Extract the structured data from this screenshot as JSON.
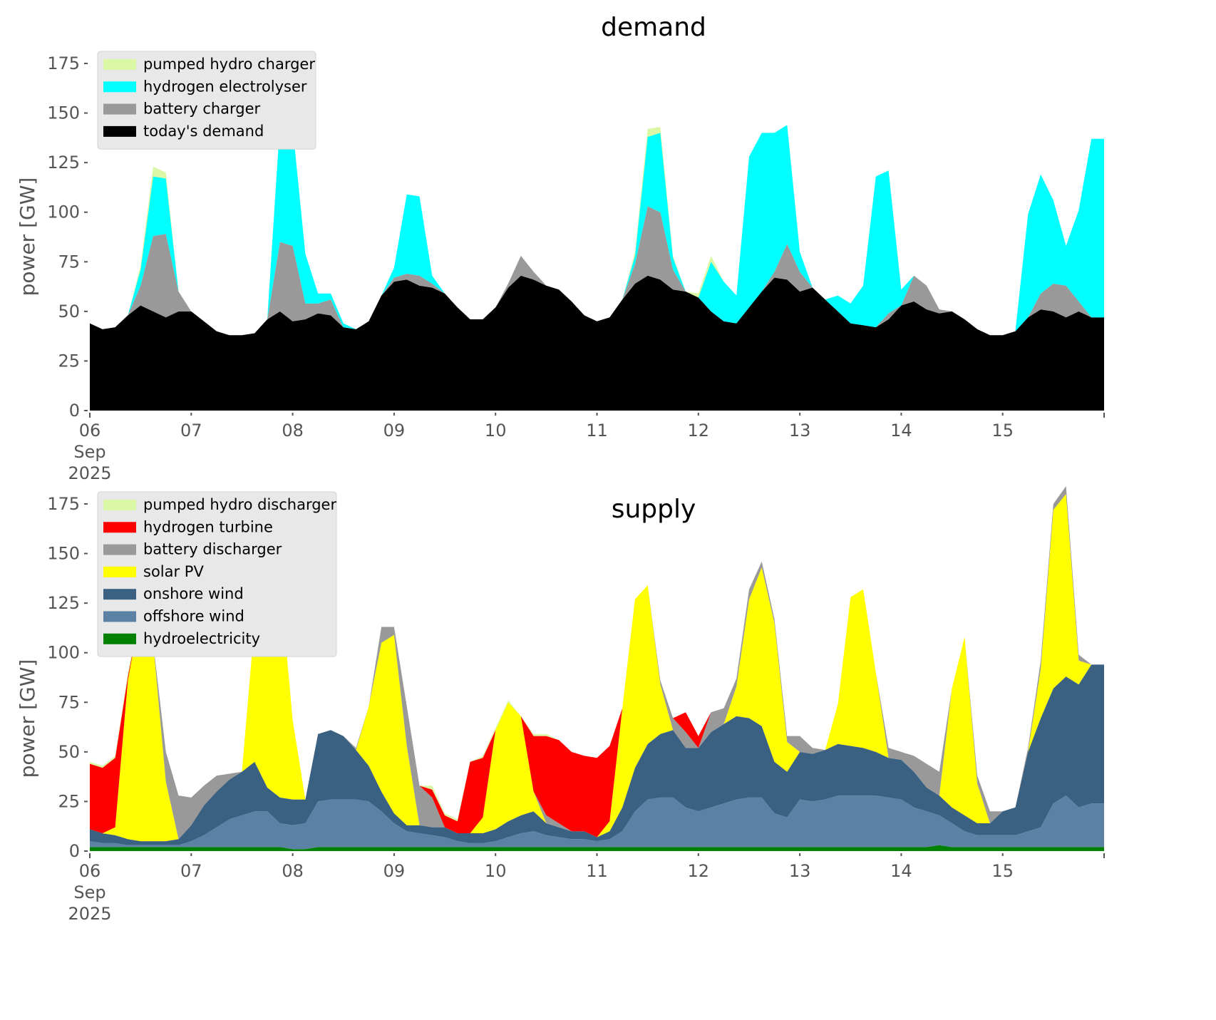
{
  "chart_data": [
    {
      "type": "area",
      "stacked": true,
      "title": "demand",
      "xlabel": "",
      "ylabel": "power [GW]",
      "ylim": [
        0,
        175
      ],
      "yticks": [
        0,
        25,
        50,
        75,
        100,
        125,
        150,
        175
      ],
      "xlim": [
        "2025-09-06",
        "2025-09-16"
      ],
      "xtick_labels": [
        "06\nSep\n2025",
        "07",
        "08",
        "09",
        "10",
        "11",
        "12",
        "13",
        "14",
        "15"
      ],
      "xtick_label_lines": [
        [
          "06",
          "Sep",
          "2025"
        ],
        [
          "07"
        ],
        [
          "08"
        ],
        [
          "09"
        ],
        [
          "10"
        ],
        [
          "11"
        ],
        [
          "12"
        ],
        [
          "13"
        ],
        [
          "14"
        ],
        [
          "15"
        ]
      ],
      "grid": false,
      "legend_placement": "top-left",
      "x_step_hours": 3,
      "x_start": "2025-09-06 00:00",
      "series": [
        {
          "name": "today's demand",
          "color": "#000000",
          "values": [
            44,
            41,
            42,
            48,
            53,
            50,
            47,
            50,
            50,
            45,
            40,
            38,
            38,
            39,
            46,
            50,
            45,
            46,
            49,
            48,
            42,
            41,
            45,
            58,
            65,
            66,
            63,
            62,
            59,
            52,
            46,
            46,
            52,
            62,
            68,
            66,
            63,
            61,
            55,
            48,
            45,
            47,
            56,
            64,
            68,
            66,
            61,
            60,
            57,
            50,
            45,
            44,
            52,
            60,
            67,
            66,
            60,
            62,
            56,
            50,
            44,
            43,
            42,
            46,
            53,
            55,
            51,
            49,
            50,
            46,
            41,
            38,
            38,
            40,
            47,
            51,
            50,
            47,
            50,
            47
          ]
        },
        {
          "name": "battery charger",
          "color": "#999999",
          "values": [
            0,
            0,
            0,
            0,
            10,
            38,
            42,
            10,
            0,
            0,
            0,
            0,
            0,
            0,
            0,
            35,
            38,
            8,
            5,
            8,
            0,
            0,
            0,
            0,
            2,
            3,
            5,
            2,
            0,
            0,
            0,
            0,
            0,
            2,
            10,
            4,
            0,
            0,
            0,
            0,
            0,
            0,
            0,
            10,
            35,
            34,
            10,
            0,
            0,
            0,
            0,
            0,
            0,
            0,
            3,
            18,
            10,
            0,
            0,
            0,
            0,
            0,
            0,
            3,
            0,
            13,
            12,
            2,
            0,
            0,
            0,
            0,
            0,
            0,
            0,
            8,
            14,
            16,
            5,
            0
          ]
        },
        {
          "name": "hydrogen electrolyser",
          "color": "#00ffff",
          "values": [
            0,
            0,
            0,
            0,
            8,
            30,
            28,
            0,
            0,
            0,
            0,
            0,
            0,
            0,
            0,
            60,
            60,
            25,
            5,
            3,
            2,
            0,
            0,
            0,
            5,
            40,
            40,
            4,
            0,
            0,
            0,
            0,
            0,
            0,
            0,
            0,
            0,
            0,
            0,
            0,
            0,
            0,
            0,
            4,
            35,
            40,
            6,
            0,
            0,
            25,
            20,
            14,
            76,
            80,
            70,
            60,
            10,
            0,
            0,
            8,
            10,
            20,
            76,
            72,
            8,
            0,
            0,
            0,
            0,
            0,
            0,
            0,
            0,
            0,
            52,
            60,
            42,
            20,
            46,
            90
          ]
        },
        {
          "name": "pumped hydro charger",
          "color": "#d9f7a5",
          "values": [
            0,
            0,
            0,
            0,
            2,
            5,
            3,
            0,
            0,
            0,
            0,
            0,
            0,
            0,
            0,
            0,
            0,
            0,
            0,
            0,
            0,
            0,
            0,
            0,
            0,
            0,
            0,
            0,
            0,
            0,
            0,
            0,
            0,
            0,
            0,
            0,
            0,
            0,
            0,
            0,
            0,
            0,
            0,
            2,
            4,
            3,
            1,
            0,
            2,
            3,
            0,
            0,
            0,
            0,
            0,
            0,
            0,
            0,
            0,
            0,
            0,
            0,
            0,
            0,
            0,
            0,
            0,
            0,
            0,
            0,
            0,
            0,
            0,
            0,
            0,
            0,
            0,
            0,
            0,
            0
          ]
        }
      ]
    },
    {
      "type": "area",
      "stacked": true,
      "title": "supply",
      "xlabel": "",
      "ylabel": "power [GW]",
      "ylim": [
        0,
        175
      ],
      "yticks": [
        0,
        25,
        50,
        75,
        100,
        125,
        150,
        175
      ],
      "xlim": [
        "2025-09-06",
        "2025-09-16"
      ],
      "xtick_labels": [
        "06\nSep\n2025",
        "07",
        "08",
        "09",
        "10",
        "11",
        "12",
        "13",
        "14",
        "15"
      ],
      "xtick_label_lines": [
        [
          "06",
          "Sep",
          "2025"
        ],
        [
          "07"
        ],
        [
          "08"
        ],
        [
          "09"
        ],
        [
          "10"
        ],
        [
          "11"
        ],
        [
          "12"
        ],
        [
          "13"
        ],
        [
          "14"
        ],
        [
          "15"
        ]
      ],
      "grid": false,
      "legend_placement": "top-left",
      "x_step_hours": 3,
      "x_start": "2025-09-06 00:00",
      "series": [
        {
          "name": "hydroelectricity",
          "color": "#008000",
          "values": [
            2,
            2,
            2,
            2,
            2,
            2,
            2,
            2,
            2,
            2,
            2,
            2,
            2,
            2,
            2,
            2,
            1,
            1,
            2,
            2,
            2,
            2,
            2,
            2,
            2,
            2,
            2,
            2,
            2,
            2,
            2,
            2,
            2,
            2,
            2,
            2,
            2,
            2,
            2,
            2,
            2,
            2,
            2,
            2,
            2,
            2,
            2,
            2,
            2,
            2,
            2,
            2,
            2,
            2,
            2,
            2,
            2,
            2,
            2,
            2,
            2,
            2,
            2,
            2,
            2,
            2,
            2,
            3,
            2,
            2,
            2,
            2,
            2,
            2,
            2,
            2,
            2,
            2,
            2,
            2
          ]
        },
        {
          "name": "offshore wind",
          "color": "#5b82a5",
          "values": [
            3,
            2,
            2,
            1,
            1,
            1,
            1,
            1,
            3,
            6,
            10,
            14,
            16,
            18,
            18,
            12,
            12,
            13,
            23,
            24,
            24,
            24,
            23,
            18,
            12,
            8,
            7,
            6,
            5,
            3,
            2,
            2,
            3,
            5,
            7,
            8,
            6,
            5,
            4,
            4,
            3,
            4,
            8,
            18,
            24,
            25,
            25,
            20,
            18,
            20,
            22,
            24,
            25,
            25,
            17,
            15,
            24,
            23,
            24,
            26,
            26,
            26,
            26,
            25,
            24,
            20,
            18,
            15,
            12,
            8,
            6,
            6,
            6,
            6,
            8,
            10,
            22,
            26,
            20,
            22
          ]
        },
        {
          "name": "onshore wind",
          "color": "#3b6182",
          "values": [
            6,
            5,
            4,
            3,
            2,
            2,
            2,
            3,
            8,
            15,
            18,
            20,
            22,
            25,
            12,
            13,
            13,
            12,
            34,
            35,
            32,
            25,
            18,
            10,
            5,
            3,
            4,
            4,
            5,
            4,
            5,
            5,
            6,
            8,
            9,
            10,
            6,
            5,
            4,
            4,
            2,
            4,
            12,
            22,
            28,
            32,
            34,
            30,
            32,
            38,
            40,
            42,
            40,
            36,
            26,
            23,
            24,
            24,
            25,
            26,
            25,
            24,
            22,
            20,
            20,
            18,
            12,
            10,
            8,
            8,
            6,
            6,
            12,
            14,
            40,
            55,
            58,
            60,
            62,
            70
          ]
        },
        {
          "name": "solar PV",
          "color": "#ffff00",
          "values": [
            0,
            0,
            4,
            80,
            116,
            100,
            30,
            0,
            0,
            0,
            0,
            0,
            0,
            70,
            120,
            110,
            40,
            0,
            0,
            0,
            0,
            0,
            30,
            75,
            90,
            40,
            0,
            0,
            0,
            0,
            0,
            8,
            50,
            60,
            50,
            10,
            0,
            0,
            0,
            0,
            0,
            5,
            50,
            85,
            80,
            25,
            0,
            0,
            0,
            0,
            0,
            15,
            60,
            80,
            70,
            15,
            0,
            0,
            0,
            20,
            75,
            80,
            40,
            0,
            0,
            0,
            0,
            0,
            60,
            90,
            20,
            0,
            0,
            0,
            0,
            25,
            90,
            92,
            12,
            0
          ]
        },
        {
          "name": "battery discharger",
          "color": "#999999",
          "values": [
            0,
            0,
            0,
            0,
            0,
            0,
            15,
            22,
            14,
            10,
            8,
            3,
            0,
            0,
            0,
            0,
            0,
            0,
            0,
            0,
            0,
            1,
            0,
            8,
            4,
            20,
            20,
            15,
            0,
            0,
            0,
            0,
            0,
            0,
            0,
            0,
            4,
            2,
            0,
            0,
            0,
            0,
            0,
            0,
            0,
            2,
            6,
            8,
            0,
            10,
            8,
            4,
            5,
            3,
            2,
            3,
            8,
            3,
            0,
            0,
            0,
            0,
            0,
            5,
            4,
            8,
            12,
            12,
            0,
            0,
            4,
            6,
            0,
            0,
            2,
            4,
            3,
            4,
            3,
            0
          ]
        },
        {
          "name": "hydrogen turbine",
          "color": "#ff0000",
          "values": [
            33,
            33,
            35,
            2,
            0,
            0,
            0,
            0,
            0,
            0,
            0,
            0,
            0,
            0,
            0,
            0,
            0,
            0,
            0,
            0,
            0,
            0,
            0,
            0,
            0,
            0,
            0,
            4,
            6,
            6,
            36,
            30,
            0,
            0,
            0,
            28,
            40,
            42,
            40,
            38,
            40,
            38,
            0,
            0,
            0,
            0,
            0,
            10,
            6,
            0,
            0,
            0,
            0,
            0,
            0,
            0,
            0,
            0,
            0,
            0,
            0,
            0,
            0,
            0,
            0,
            0,
            0,
            0,
            0,
            0,
            0,
            0,
            0,
            0,
            0,
            0,
            0,
            0,
            0,
            0
          ]
        },
        {
          "name": "pumped hydro discharger",
          "color": "#d9f7a5",
          "values": [
            1,
            1,
            1,
            2,
            0,
            0,
            0,
            0,
            0,
            0,
            0,
            0,
            0,
            0,
            0,
            0,
            0,
            0,
            0,
            0,
            0,
            0,
            0,
            0,
            0,
            0,
            0,
            2,
            1,
            1,
            0,
            1,
            1,
            1,
            0,
            1,
            1,
            0,
            0,
            0,
            0,
            0,
            0,
            0,
            0,
            0,
            0,
            0,
            0,
            0,
            0,
            0,
            0,
            0,
            0,
            0,
            0,
            0,
            0,
            0,
            0,
            0,
            0,
            0,
            0,
            0,
            0,
            0,
            0,
            0,
            0,
            0,
            0,
            0,
            0,
            0,
            0,
            0,
            0,
            0
          ]
        }
      ]
    }
  ],
  "legends": [
    {
      "items": [
        "pumped hydro charger",
        "hydrogen electrolyser",
        "battery charger",
        "today's demand"
      ],
      "colors": [
        "#d9f7a5",
        "#00ffff",
        "#999999",
        "#000000"
      ]
    },
    {
      "items": [
        "pumped hydro discharger",
        "hydrogen turbine",
        "battery discharger",
        "solar PV",
        "onshore wind",
        "offshore wind",
        "hydroelectricity"
      ],
      "colors": [
        "#d9f7a5",
        "#ff0000",
        "#999999",
        "#ffff00",
        "#3b6182",
        "#5b82a5",
        "#008000"
      ]
    }
  ]
}
